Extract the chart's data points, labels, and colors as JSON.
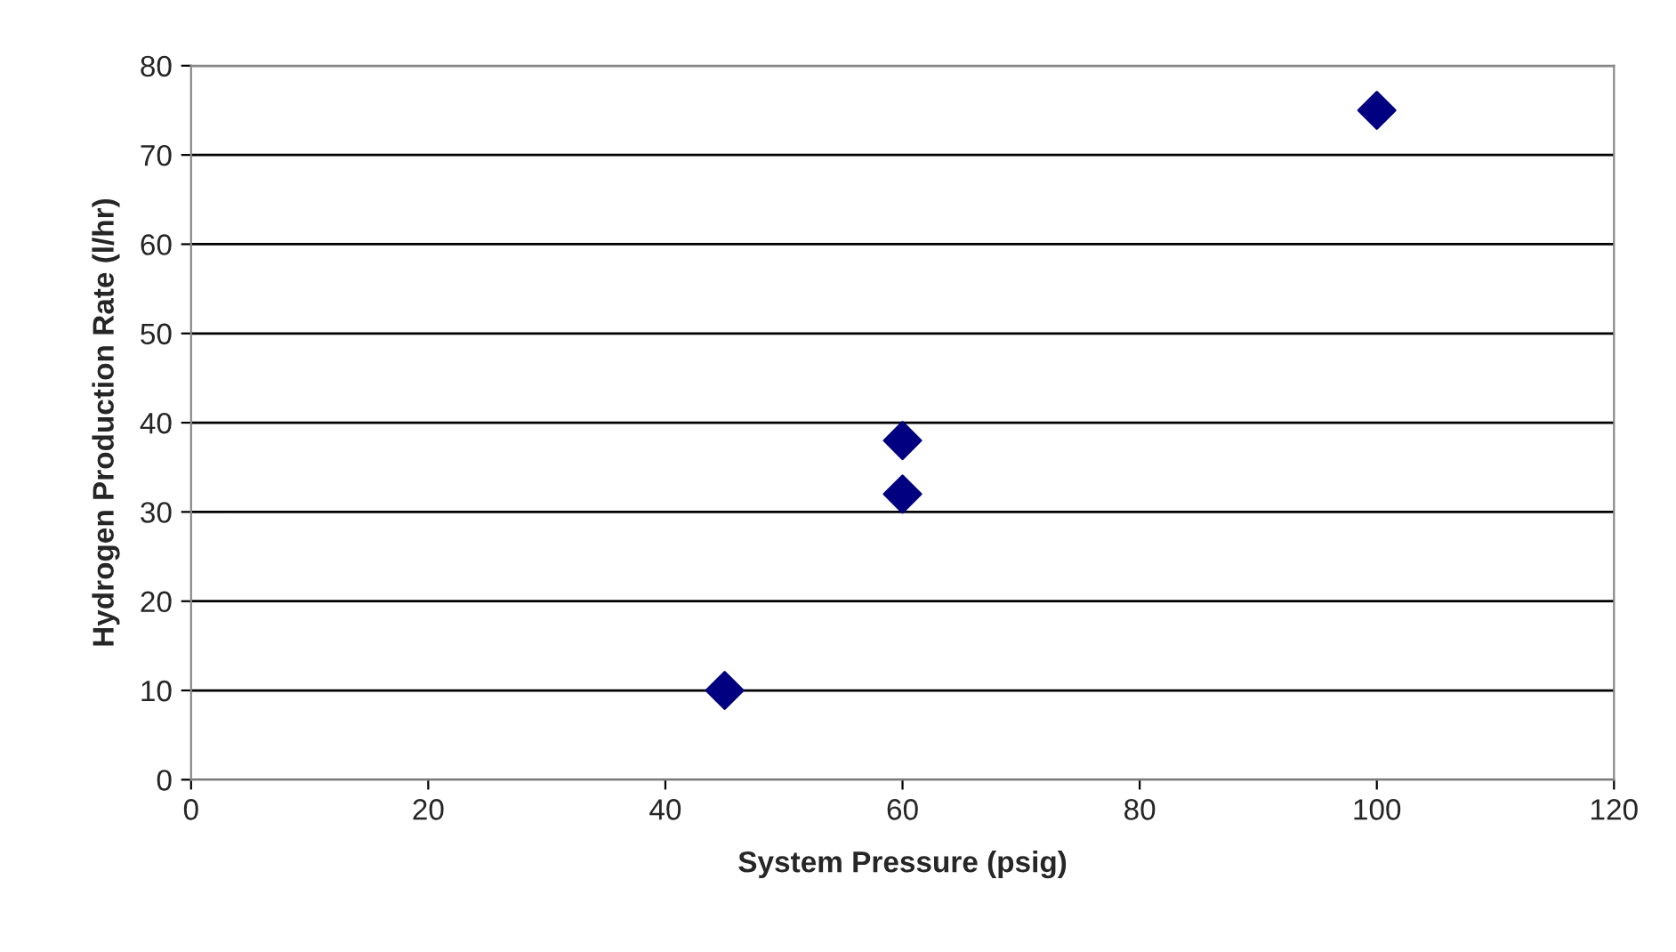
{
  "chart_data": {
    "type": "scatter",
    "xlabel": "System Pressure (psig)",
    "ylabel": "Hydrogen Production Rate (l/hr)",
    "x": [
      45,
      60,
      60,
      100
    ],
    "series": [
      {
        "color": "#000080",
        "values": [
          10,
          32,
          38,
          75
        ]
      }
    ],
    "xlim": [
      0,
      120
    ],
    "xticks": [
      0,
      20,
      40,
      60,
      80,
      100,
      120
    ],
    "ylim": [
      0,
      80
    ],
    "yticks": [
      0,
      10,
      20,
      30,
      40,
      50,
      60,
      70,
      80
    ],
    "grid": "y",
    "marker": "diamond",
    "legend": false
  }
}
